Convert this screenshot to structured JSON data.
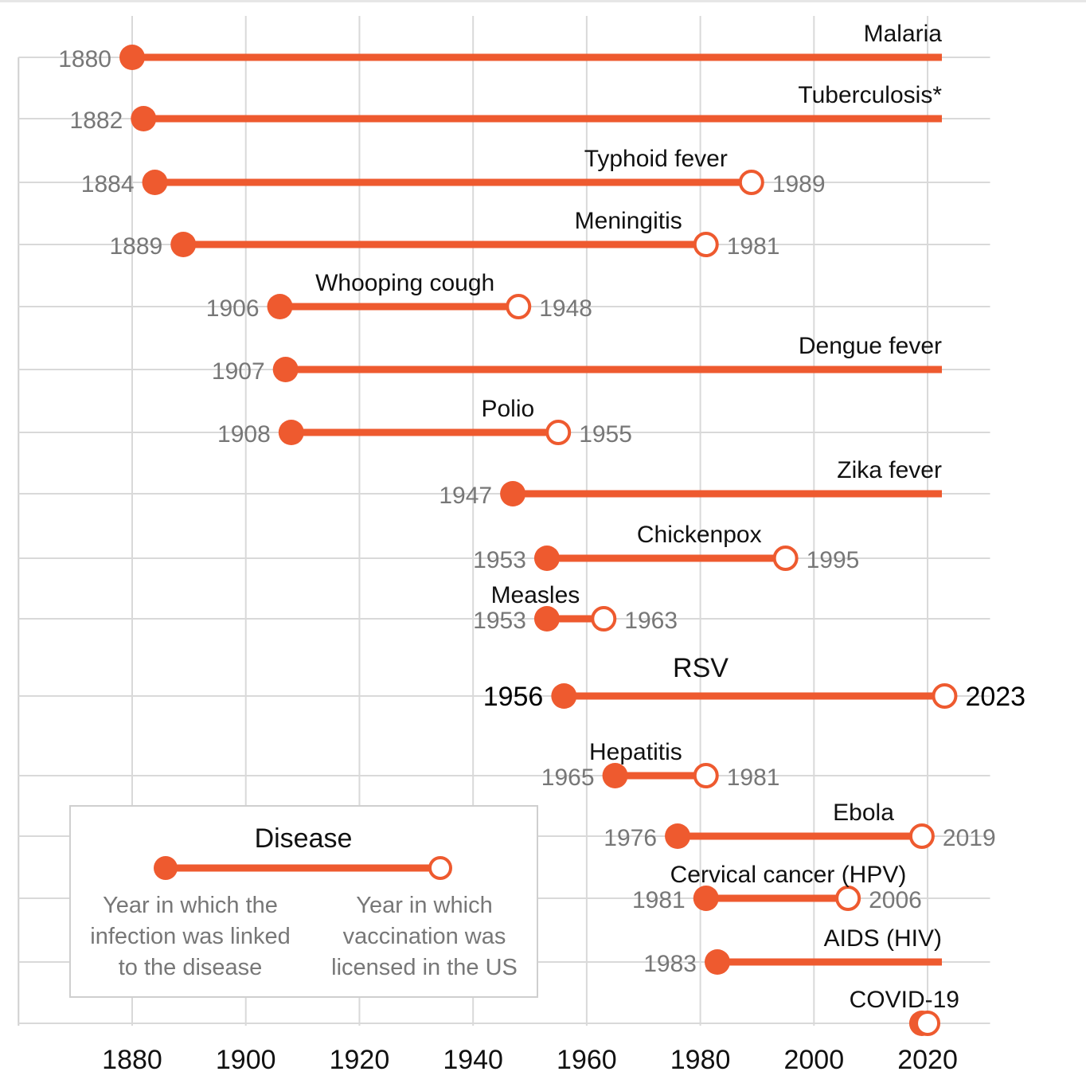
{
  "chart_data": {
    "type": "dumbbell-timeline",
    "title": "",
    "xlabel": "",
    "ylabel": "",
    "xlim": [
      1860,
      2031
    ],
    "x_ticks": [
      "1880",
      "1900",
      "1920",
      "1940",
      "1960",
      "1980",
      "2000",
      "2020"
    ],
    "grid": true,
    "accent_color": "#ee5a2f",
    "series": [
      {
        "name": "Malaria",
        "linked": 1880,
        "linked_label": "1880",
        "vaccine": null,
        "vaccine_label": null
      },
      {
        "name": "Tuberculosis*",
        "linked": 1882,
        "linked_label": "1882",
        "vaccine": null,
        "vaccine_label": null
      },
      {
        "name": "Typhoid fever",
        "linked": 1884,
        "linked_label": "1884",
        "vaccine": 1989,
        "vaccine_label": "1989"
      },
      {
        "name": "Meningitis",
        "linked": 1889,
        "linked_label": "1889",
        "vaccine": 1981,
        "vaccine_label": "1981"
      },
      {
        "name": "Whooping cough",
        "linked": 1906,
        "linked_label": "1906",
        "vaccine": 1948,
        "vaccine_label": "1948"
      },
      {
        "name": "Dengue fever",
        "linked": 1907,
        "linked_label": "1907",
        "vaccine": null,
        "vaccine_label": null
      },
      {
        "name": "Polio",
        "linked": 1908,
        "linked_label": "1908",
        "vaccine": 1955,
        "vaccine_label": "1955"
      },
      {
        "name": "Zika fever",
        "linked": 1947,
        "linked_label": "1947",
        "vaccine": null,
        "vaccine_label": null
      },
      {
        "name": "Chickenpox",
        "linked": 1953,
        "linked_label": "1953",
        "vaccine": 1995,
        "vaccine_label": "1995"
      },
      {
        "name": "Measles",
        "linked": 1953,
        "linked_label": "1953",
        "vaccine": 1963,
        "vaccine_label": "1963"
      },
      {
        "name": "RSV",
        "linked": 1956,
        "linked_label": "1956",
        "vaccine": 2023,
        "vaccine_label": "2023",
        "highlight": true
      },
      {
        "name": "Hepatitis",
        "linked": 1965,
        "linked_label": "1965",
        "vaccine": 1981,
        "vaccine_label": "1981"
      },
      {
        "name": "Ebola",
        "linked": 1976,
        "linked_label": "1976",
        "vaccine": 2019,
        "vaccine_label": "2019"
      },
      {
        "name": "Cervical cancer (HPV)",
        "linked": 1981,
        "linked_label": "1981",
        "vaccine": 2006,
        "vaccine_label": "2006"
      },
      {
        "name": "AIDS (HIV)",
        "linked": 1983,
        "linked_label": "1983",
        "vaccine": null,
        "vaccine_label": null
      },
      {
        "name": "COVID-19",
        "linked": 2019,
        "linked_label": null,
        "vaccine": 2020,
        "vaccine_label": null
      }
    ],
    "legend": {
      "title": "Disease",
      "placement": "bottom-left",
      "filled_marker": [
        "Year in which the",
        "infection was linked",
        "to the disease"
      ],
      "open_marker": [
        "Year in which",
        "vaccination was",
        "licensed in the US"
      ]
    }
  }
}
